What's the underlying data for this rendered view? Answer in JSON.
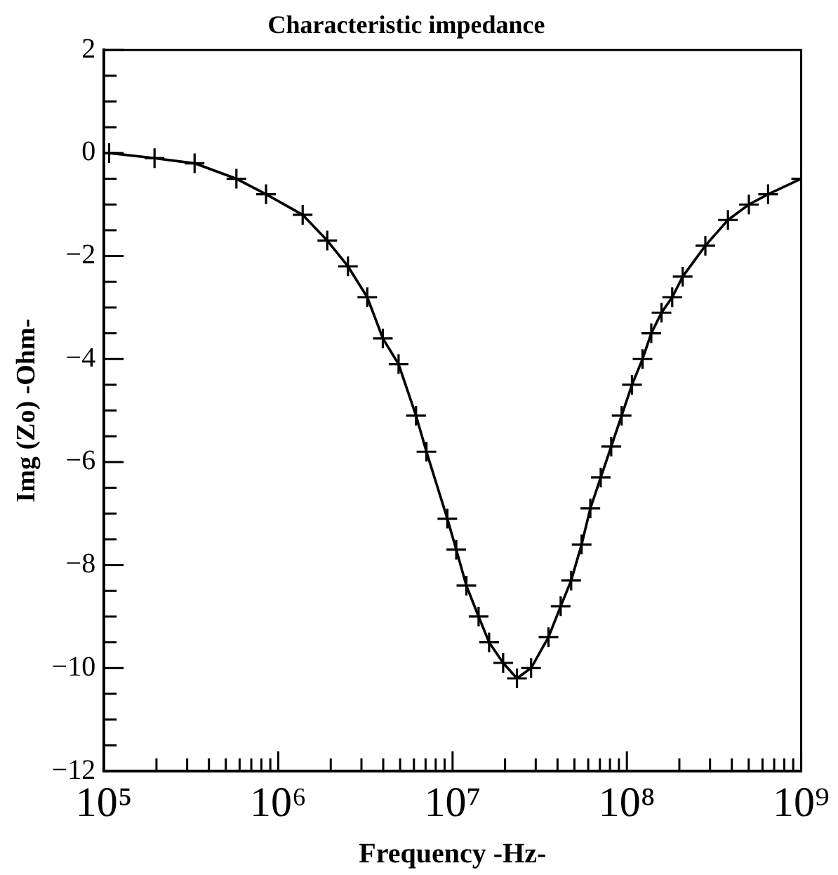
{
  "chart_data": {
    "type": "line",
    "title": "Characteristic impedance",
    "xlabel": "Frequency -Hz-",
    "ylabel": "Img (Zo) -Ohm-",
    "log": "x",
    "marker": "cross",
    "line_style": "solid",
    "legend": false,
    "x": [
      107000,
      195000,
      331000,
      575000,
      851000,
      1380000,
      1910000,
      2510000,
      3240000,
      3980000,
      4900000,
      6170000,
      7080000,
      9330000,
      10500000,
      12000000,
      14100000,
      16200000,
      19500000,
      23400000,
      28200000,
      35500000,
      41700000,
      47900000,
      55000000,
      61700000,
      70800000,
      81300000,
      93300000,
      107000000,
      123000000,
      138000000,
      158000000,
      182000000,
      209000000,
      282000000,
      380000000,
      501000000,
      646000000,
      1000000000
    ],
    "series": [
      {
        "color": "#000000",
        "values": [
          0.0,
          -0.1,
          -0.2,
          -0.5,
          -0.8,
          -1.2,
          -1.7,
          -2.2,
          -2.8,
          -3.6,
          -4.1,
          -5.1,
          -5.8,
          -7.1,
          -7.7,
          -8.4,
          -9.0,
          -9.5,
          -9.9,
          -10.2,
          -10.0,
          -9.4,
          -8.8,
          -8.3,
          -7.6,
          -6.9,
          -6.3,
          -5.7,
          -5.1,
          -4.5,
          -4.0,
          -3.5,
          -3.1,
          -2.8,
          -2.4,
          -1.8,
          -1.3,
          -1.0,
          -0.8,
          -0.5
        ]
      }
    ],
    "xlim": [
      100000,
      1000000000
    ],
    "xticks": [
      {
        "value": 100000,
        "label": "10⁵"
      },
      {
        "value": 200000,
        "label": null
      },
      {
        "value": 300000,
        "label": null
      },
      {
        "value": 400000,
        "label": null
      },
      {
        "value": 500000,
        "label": null
      },
      {
        "value": 600000,
        "label": null
      },
      {
        "value": 700000,
        "label": null
      },
      {
        "value": 800000,
        "label": null
      },
      {
        "value": 900000,
        "label": null
      },
      {
        "value": 1000000,
        "label": "10⁶"
      },
      {
        "value": 2000000,
        "label": null
      },
      {
        "value": 3000000,
        "label": null
      },
      {
        "value": 4000000,
        "label": null
      },
      {
        "value": 5000000,
        "label": null
      },
      {
        "value": 6000000,
        "label": null
      },
      {
        "value": 7000000,
        "label": null
      },
      {
        "value": 8000000,
        "label": null
      },
      {
        "value": 9000000,
        "label": null
      },
      {
        "value": 10000000,
        "label": "10⁷"
      },
      {
        "value": 20000000,
        "label": null
      },
      {
        "value": 30000000,
        "label": null
      },
      {
        "value": 40000000,
        "label": null
      },
      {
        "value": 50000000,
        "label": null
      },
      {
        "value": 60000000,
        "label": null
      },
      {
        "value": 70000000,
        "label": null
      },
      {
        "value": 80000000,
        "label": null
      },
      {
        "value": 90000000,
        "label": null
      },
      {
        "value": 100000000,
        "label": "10⁸"
      },
      {
        "value": 200000000,
        "label": null
      },
      {
        "value": 300000000,
        "label": null
      },
      {
        "value": 400000000,
        "label": null
      },
      {
        "value": 500000000,
        "label": null
      },
      {
        "value": 600000000,
        "label": null
      },
      {
        "value": 700000000,
        "label": null
      },
      {
        "value": 800000000,
        "label": null
      },
      {
        "value": 900000000,
        "label": null
      },
      {
        "value": 1000000000,
        "label": "10⁹"
      }
    ],
    "ylim": [
      -12,
      2
    ],
    "yticks": [
      {
        "value": -12,
        "label": "−12"
      },
      {
        "value": -11.5,
        "label": null
      },
      {
        "value": -11,
        "label": null
      },
      {
        "value": -10.5,
        "label": null
      },
      {
        "value": -10,
        "label": "−10"
      },
      {
        "value": -9.5,
        "label": null
      },
      {
        "value": -9,
        "label": null
      },
      {
        "value": -8.5,
        "label": null
      },
      {
        "value": -8,
        "label": "−8"
      },
      {
        "value": -7.5,
        "label": null
      },
      {
        "value": -7,
        "label": null
      },
      {
        "value": -6.5,
        "label": null
      },
      {
        "value": -6,
        "label": "−6"
      },
      {
        "value": -5.5,
        "label": null
      },
      {
        "value": -5,
        "label": null
      },
      {
        "value": -4.5,
        "label": null
      },
      {
        "value": -4,
        "label": "−4"
      },
      {
        "value": -3.5,
        "label": null
      },
      {
        "value": -3,
        "label": null
      },
      {
        "value": -2.5,
        "label": null
      },
      {
        "value": -2,
        "label": "−2"
      },
      {
        "value": -1.5,
        "label": null
      },
      {
        "value": -1,
        "label": null
      },
      {
        "value": -0.5,
        "label": null
      },
      {
        "value": 0,
        "label": "0"
      },
      {
        "value": 0.5,
        "label": null
      },
      {
        "value": 1,
        "label": null
      },
      {
        "value": 1.5,
        "label": null
      },
      {
        "value": 2,
        "label": "2"
      }
    ]
  }
}
